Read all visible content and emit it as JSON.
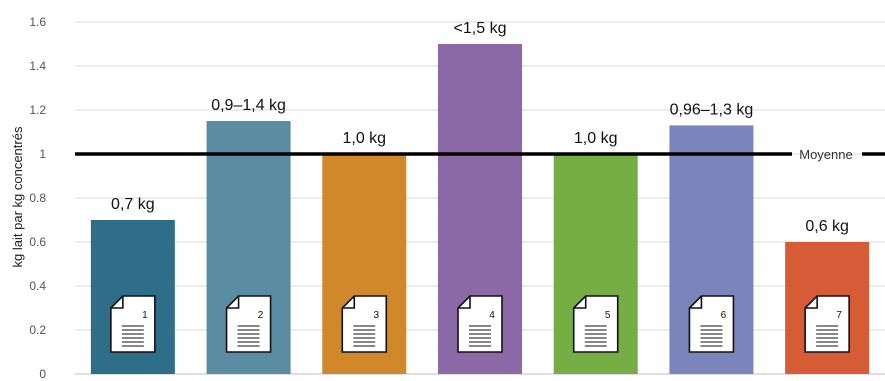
{
  "chart_data": {
    "type": "bar",
    "categories": [
      "1",
      "2",
      "3",
      "4",
      "5",
      "6",
      "7"
    ],
    "values": [
      0.7,
      1.15,
      1.0,
      1.5,
      1.0,
      1.13,
      0.6
    ],
    "data_labels": [
      "0,7 kg",
      "0,9–1,4 kg",
      "1,0 kg",
      "<1,5 kg",
      "1,0 kg",
      "0,96–1,3 kg",
      "0,6 kg"
    ],
    "colors": [
      "#2f6e88",
      "#5a8ca2",
      "#d0882a",
      "#8c68a6",
      "#74ae44",
      "#7b84bb",
      "#d65c38"
    ],
    "title": "",
    "xlabel": "",
    "ylabel": "kg lait par kg concentrés",
    "ylim": [
      0,
      1.6
    ],
    "yticks": [
      "0",
      "0.2",
      "0.4",
      "0.6",
      "0.8",
      "1",
      "1.2",
      "1.4",
      "1.6"
    ],
    "reference_line": {
      "value": 1.0,
      "label": "Moyenne"
    },
    "grid": true,
    "legend": "none",
    "bar_icon": "document-icon"
  }
}
